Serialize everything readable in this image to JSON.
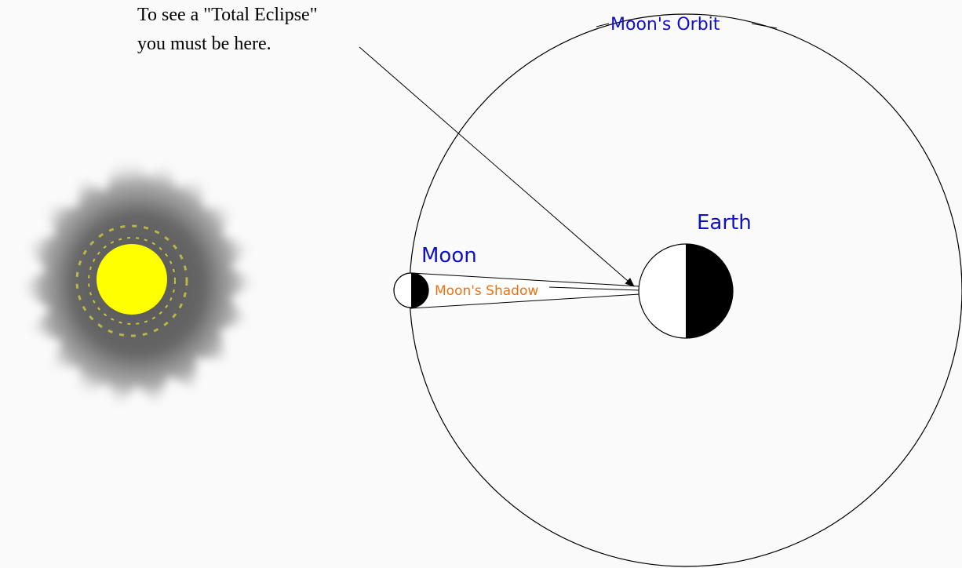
{
  "annotation": {
    "lines": [
      "To see a \"Total Eclipse\"",
      "you must be here."
    ]
  },
  "labels": {
    "orbit": "Moon's Orbit",
    "earth": "Earth",
    "moon": "Moon",
    "shadow": "Moon's Shadow"
  }
}
